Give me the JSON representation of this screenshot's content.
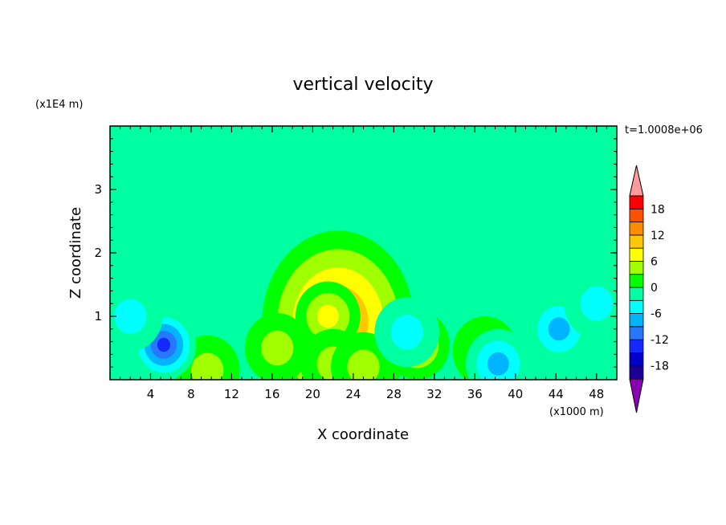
{
  "chart_data": {
    "type": "heatmap",
    "title": "vertical velocity",
    "xlabel": "X coordinate",
    "ylabel": "Z coordinate",
    "x_units": "(x1000 m)",
    "y_units": "(x1E4 m)",
    "time_label": "t=1.0008e+06",
    "xlim": [
      0,
      50
    ],
    "ylim": [
      0,
      4
    ],
    "x_ticks": [
      4,
      8,
      12,
      16,
      20,
      24,
      28,
      32,
      36,
      40,
      44,
      48
    ],
    "y_ticks": [
      1,
      2,
      3
    ],
    "colorbar": {
      "labeled_levels": [
        18,
        12,
        6,
        0,
        -6,
        -12,
        -18
      ],
      "levels": [
        -21,
        -18,
        -15,
        -12,
        -9,
        -6,
        -3,
        0,
        3,
        6,
        9,
        12,
        15,
        18,
        21
      ],
      "band_colors": [
        "#1a0096",
        "#0000c8",
        "#1428ff",
        "#2878ff",
        "#00b4ff",
        "#00ffff",
        "#00ffa0",
        "#00ff00",
        "#a0ff00",
        "#ffff00",
        "#ffc800",
        "#ff8c00",
        "#ff5000",
        "#ff0000"
      ],
      "over_color": "#ff9a9a",
      "under_color": "#8a00b4"
    },
    "background_value": -1.5,
    "features": [
      {
        "kind": "updraft-core",
        "x": 22.5,
        "z": 0.9,
        "value": 13
      },
      {
        "kind": "updraft",
        "x": 21.5,
        "z": 1.0,
        "value": 9
      },
      {
        "kind": "updraft",
        "x": 30.3,
        "z": 0.55,
        "value": 7
      },
      {
        "kind": "updraft",
        "x": 16.5,
        "z": 0.5,
        "value": 6
      },
      {
        "kind": "updraft",
        "x": 9.6,
        "z": 0.15,
        "value": 6
      },
      {
        "kind": "updraft",
        "x": 22,
        "z": 0.25,
        "value": 6
      },
      {
        "kind": "updraft",
        "x": 25,
        "z": 0.2,
        "value": 5
      },
      {
        "kind": "updraft",
        "x": 37,
        "z": 0.45,
        "value": 3
      },
      {
        "kind": "downdraft",
        "x": 5.3,
        "z": 0.55,
        "value": -13
      },
      {
        "kind": "downdraft",
        "x": 44.3,
        "z": 0.8,
        "value": -9
      },
      {
        "kind": "downdraft",
        "x": 38.3,
        "z": 0.25,
        "value": -8
      },
      {
        "kind": "downdraft",
        "x": 29.3,
        "z": 0.75,
        "value": -5
      },
      {
        "kind": "downdraft",
        "x": 2,
        "z": 1.0,
        "value": -4
      },
      {
        "kind": "downdraft",
        "x": 48,
        "z": 1.2,
        "value": -4
      }
    ]
  }
}
